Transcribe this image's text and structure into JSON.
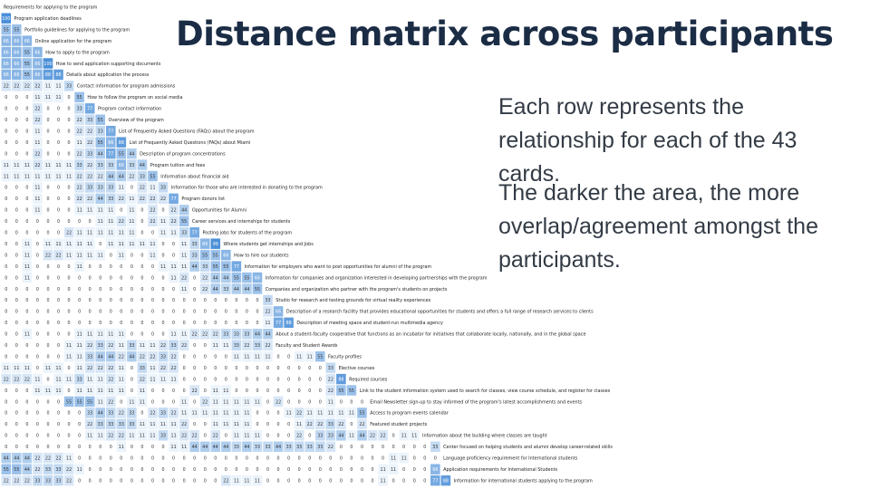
{
  "slide": {
    "title": "Distance matrix across participants",
    "paragraphs": [
      "Each row represents the relationship for each of the 43 cards.",
      "The darker the area, the more overlap/agreement amongst the participants."
    ]
  },
  "chart_data": {
    "type": "heatmap",
    "color_scale": {
      "low": "#ffffff",
      "high": "#4a8fd8"
    },
    "labels": [
      "Requirements for applying to the program",
      "Program application deadlines",
      "Portfolio guidelines for applying to the program",
      "Online application for the program",
      "How to apply to the program",
      "How to send application supporting documents",
      "Details about application the process",
      "Contact information for program admissions",
      "How to follow the program on social media",
      "Program contact information",
      "Overview of the program",
      "List of Frequently Asked Questions (FAQs) about the program",
      "List of Frequently Asked Questions (FAQs) about Miami",
      "Description of program concentrations",
      "Program tuition and fees",
      "Information about financial aid",
      "Information for those who are interested in donating to the program",
      "Program donors list",
      "Opportunities for Alumni",
      "Career services and internships for students",
      "Posting jobs for students of the program",
      "Where students get internships and Jobs",
      "How to hire our students",
      "Information for employers who want to post opportunities for alumni of the program",
      "Information for companies and organization interested in developing partnerships with the program",
      "Companies and organization who partner with the program's students on projects",
      "Studio for research and testing grounds for virtual reality experiences",
      "Description of a research facility that provides educational opportunities for students and offers a full range of research services to clients",
      "Description of meeting space and student-run multimedia agency",
      "About a student-faculty cooperative that functions as an incubator for initiatives that collaborate locally, nationally, and in the global space",
      "Faculty and Student Awards",
      "Faculty profiles",
      "Elective courses",
      "Required courses",
      "Link to the student information system used to search for classes, view course schedule, and register for classes",
      "Email Newsletter sign-up to stay informed of the program's latest accomplishments and events",
      "Access to program events calendar",
      "Featured student projects",
      "Information about the building where classes are taught",
      "Center focused on helping students and alumni develop career-related skills",
      "Language proficiency requirement for International students",
      "Application requirements for International Students",
      "Information for international students applying to the program"
    ],
    "rows": [
      [],
      [
        100
      ],
      [
        55,
        55
      ],
      [
        66,
        66,
        66
      ],
      [
        66,
        66,
        55,
        66
      ],
      [
        66,
        66,
        55,
        66,
        100
      ],
      [
        66,
        66,
        55,
        66,
        88,
        88
      ],
      [
        22,
        22,
        22,
        22,
        11,
        11,
        33
      ],
      [
        0,
        0,
        0,
        11,
        11,
        11,
        0,
        55
      ],
      [
        0,
        0,
        0,
        22,
        0,
        0,
        0,
        33,
        77
      ],
      [
        0,
        0,
        0,
        22,
        0,
        0,
        0,
        22,
        33,
        55
      ],
      [
        0,
        0,
        0,
        11,
        0,
        0,
        0,
        22,
        22,
        33,
        77
      ],
      [
        0,
        0,
        0,
        11,
        0,
        0,
        0,
        11,
        22,
        55,
        66,
        88
      ],
      [
        0,
        0,
        0,
        22,
        0,
        0,
        0,
        22,
        33,
        44,
        77,
        55,
        44
      ],
      [
        11,
        11,
        11,
        22,
        11,
        11,
        11,
        33,
        22,
        33,
        33,
        66,
        33,
        44
      ],
      [
        11,
        11,
        11,
        11,
        11,
        11,
        11,
        22,
        22,
        22,
        44,
        44,
        22,
        33,
        55
      ],
      [
        0,
        0,
        0,
        11,
        0,
        0,
        0,
        22,
        33,
        33,
        33,
        11,
        0,
        22,
        11,
        33
      ],
      [
        0,
        0,
        0,
        11,
        0,
        0,
        0,
        22,
        22,
        44,
        33,
        22,
        11,
        22,
        22,
        22,
        77
      ],
      [
        0,
        0,
        0,
        11,
        0,
        0,
        0,
        11,
        11,
        11,
        11,
        0,
        11,
        0,
        22,
        0,
        22,
        44
      ],
      [
        0,
        0,
        0,
        0,
        0,
        0,
        0,
        0,
        0,
        11,
        11,
        22,
        11,
        0,
        22,
        11,
        22,
        55
      ],
      [
        0,
        0,
        0,
        0,
        0,
        0,
        22,
        11,
        11,
        11,
        11,
        11,
        11,
        0,
        0,
        11,
        11,
        33,
        77
      ],
      [
        0,
        0,
        11,
        0,
        11,
        11,
        11,
        11,
        11,
        0,
        11,
        11,
        11,
        11,
        11,
        0,
        0,
        11,
        33,
        66,
        99
      ],
      [
        0,
        0,
        11,
        0,
        22,
        22,
        11,
        11,
        11,
        11,
        0,
        11,
        0,
        0,
        11,
        0,
        0,
        11,
        33,
        55,
        55,
        66
      ],
      [
        0,
        0,
        11,
        0,
        0,
        0,
        0,
        11,
        0,
        0,
        0,
        0,
        0,
        0,
        0,
        11,
        11,
        11,
        44,
        33,
        55,
        55,
        77
      ],
      [
        0,
        0,
        11,
        0,
        0,
        0,
        0,
        0,
        0,
        0,
        0,
        0,
        0,
        0,
        0,
        0,
        11,
        22,
        0,
        22,
        44,
        44,
        55,
        55,
        66
      ],
      [
        0,
        0,
        0,
        0,
        0,
        0,
        0,
        0,
        0,
        0,
        0,
        0,
        0,
        0,
        0,
        0,
        0,
        11,
        0,
        22,
        44,
        33,
        44,
        44,
        55
      ],
      [
        0,
        0,
        0,
        0,
        0,
        0,
        0,
        0,
        0,
        0,
        0,
        0,
        0,
        0,
        0,
        0,
        0,
        0,
        0,
        0,
        0,
        0,
        0,
        0,
        0,
        33
      ],
      [
        0,
        0,
        0,
        0,
        0,
        0,
        0,
        0,
        0,
        0,
        0,
        0,
        0,
        0,
        0,
        0,
        0,
        0,
        0,
        0,
        0,
        0,
        0,
        0,
        0,
        22,
        66
      ],
      [
        0,
        0,
        0,
        0,
        0,
        0,
        0,
        0,
        0,
        0,
        0,
        0,
        0,
        0,
        0,
        0,
        0,
        0,
        0,
        0,
        0,
        0,
        0,
        0,
        0,
        11,
        77,
        88
      ],
      [
        0,
        0,
        11,
        0,
        0,
        0,
        0,
        11,
        11,
        11,
        11,
        11,
        0,
        0,
        0,
        0,
        11,
        11,
        22,
        22,
        22,
        33,
        33,
        33,
        44,
        44
      ],
      [
        0,
        0,
        0,
        0,
        0,
        0,
        11,
        11,
        22,
        33,
        22,
        11,
        33,
        11,
        11,
        22,
        33,
        22,
        0,
        0,
        11,
        11,
        33,
        22,
        33,
        22
      ],
      [
        0,
        0,
        0,
        0,
        0,
        0,
        11,
        11,
        33,
        44,
        44,
        22,
        44,
        22,
        22,
        33,
        22,
        0,
        0,
        0,
        0,
        0,
        11,
        11,
        11,
        11,
        0,
        0,
        11,
        11,
        55
      ],
      [
        11,
        11,
        11,
        0,
        11,
        11,
        0,
        11,
        22,
        22,
        22,
        11,
        0,
        33,
        11,
        22,
        22,
        0,
        0,
        0,
        0,
        0,
        0,
        0,
        0,
        0,
        0,
        0,
        0,
        0,
        0,
        33
      ],
      [
        22,
        22,
        22,
        11,
        0,
        11,
        11,
        33,
        11,
        11,
        22,
        11,
        0,
        22,
        11,
        11,
        11,
        0,
        0,
        0,
        0,
        0,
        0,
        0,
        0,
        0,
        0,
        0,
        0,
        0,
        0,
        22,
        88
      ],
      [
        0,
        0,
        0,
        11,
        11,
        11,
        0,
        11,
        11,
        11,
        11,
        11,
        0,
        11,
        0,
        0,
        0,
        0,
        22,
        0,
        11,
        11,
        0,
        0,
        0,
        0,
        0,
        0,
        0,
        0,
        0,
        22,
        55,
        55
      ],
      [
        0,
        0,
        0,
        0,
        0,
        0,
        55,
        55,
        55,
        11,
        22,
        0,
        11,
        11,
        0,
        0,
        0,
        11,
        0,
        22,
        11,
        11,
        11,
        11,
        11,
        0,
        22,
        0,
        0,
        0,
        0,
        11,
        0,
        0,
        0
      ],
      [
        0,
        0,
        0,
        0,
        0,
        0,
        0,
        0,
        33,
        44,
        33,
        22,
        33,
        0,
        22,
        33,
        22,
        11,
        11,
        11,
        11,
        11,
        11,
        11,
        0,
        0,
        0,
        11,
        22,
        11,
        11,
        11,
        11,
        11,
        55
      ],
      [
        0,
        0,
        0,
        0,
        0,
        0,
        0,
        0,
        22,
        33,
        33,
        33,
        33,
        11,
        11,
        11,
        11,
        22,
        0,
        0,
        11,
        11,
        11,
        11,
        0,
        0,
        0,
        0,
        11,
        22,
        22,
        33,
        22,
        0,
        22
      ],
      [
        0,
        0,
        0,
        0,
        0,
        0,
        0,
        0,
        11,
        11,
        22,
        22,
        11,
        11,
        11,
        33,
        11,
        22,
        22,
        0,
        22,
        0,
        11,
        11,
        11,
        0,
        0,
        0,
        22,
        0,
        33,
        33,
        44,
        11,
        44,
        22,
        22,
        0,
        11,
        11
      ],
      [
        0,
        0,
        0,
        0,
        0,
        0,
        0,
        0,
        0,
        0,
        0,
        11,
        0,
        0,
        0,
        0,
        11,
        11,
        44,
        44,
        44,
        44,
        33,
        44,
        33,
        33,
        44,
        33,
        33,
        33,
        33,
        22,
        0,
        0,
        0,
        0,
        0,
        0,
        0,
        0,
        0,
        33
      ],
      [
        44,
        44,
        44,
        22,
        22,
        22,
        11,
        0,
        0,
        0,
        0,
        0,
        0,
        0,
        0,
        0,
        0,
        0,
        0,
        0,
        0,
        0,
        0,
        0,
        0,
        0,
        0,
        0,
        0,
        0,
        0,
        0,
        0,
        0,
        0,
        0,
        0,
        11,
        11,
        0,
        0,
        0
      ],
      [
        55,
        55,
        44,
        22,
        33,
        33,
        22,
        11,
        0,
        0,
        0,
        0,
        0,
        0,
        0,
        0,
        0,
        0,
        0,
        0,
        0,
        0,
        0,
        0,
        0,
        0,
        0,
        0,
        0,
        0,
        0,
        0,
        0,
        0,
        0,
        0,
        11,
        11,
        0,
        0,
        0,
        66
      ],
      [
        22,
        22,
        22,
        33,
        33,
        33,
        22,
        0,
        0,
        0,
        0,
        0,
        0,
        0,
        0,
        0,
        0,
        0,
        0,
        0,
        0,
        22,
        11,
        11,
        11,
        0,
        0,
        0,
        0,
        0,
        0,
        0,
        0,
        0,
        0,
        0,
        11,
        0,
        0,
        0,
        0,
        77,
        88
      ]
    ]
  }
}
